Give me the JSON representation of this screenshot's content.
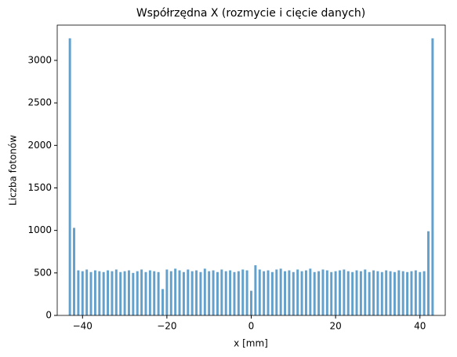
{
  "chart_data": {
    "type": "histogram",
    "title": "Współrzędna X (rozmycie i cięcie danych)",
    "x_label": "x [mm]",
    "y_label": "Liczba fotonów",
    "color": "#63a1cc",
    "bins": [
      -43.5,
      -42.5,
      -41.5,
      -40.5,
      -39.5,
      -38.5,
      -37.5,
      -36.5,
      -35.5,
      -34.5,
      -33.5,
      -32.5,
      -31.5,
      -30.5,
      -29.5,
      -28.5,
      -27.5,
      -26.5,
      -25.5,
      -24.5,
      -23.5,
      -22.5,
      -21.5,
      -20.5,
      -19.5,
      -18.5,
      -17.5,
      -16.5,
      -15.5,
      -14.5,
      -13.5,
      -12.5,
      -11.5,
      -10.5,
      -9.5,
      -8.5,
      -7.5,
      -6.5,
      -5.5,
      -4.5,
      -3.5,
      -2.5,
      -1.5,
      -0.5,
      0.5,
      1.5,
      2.5,
      3.5,
      4.5,
      5.5,
      6.5,
      7.5,
      8.5,
      9.5,
      10.5,
      11.5,
      12.5,
      13.5,
      14.5,
      15.5,
      16.5,
      17.5,
      18.5,
      19.5,
      20.5,
      21.5,
      22.5,
      23.5,
      24.5,
      25.5,
      26.5,
      27.5,
      28.5,
      29.5,
      30.5,
      31.5,
      32.5,
      33.5,
      34.5,
      35.5,
      36.5,
      37.5,
      38.5,
      39.5,
      40.5,
      41.5,
      42.5,
      43.5
    ],
    "counts": [
      3260,
      1030,
      530,
      520,
      540,
      510,
      530,
      520,
      510,
      530,
      520,
      540,
      510,
      520,
      530,
      500,
      520,
      540,
      510,
      530,
      520,
      510,
      310,
      540,
      520,
      550,
      530,
      510,
      540,
      520,
      530,
      510,
      550,
      520,
      530,
      510,
      540,
      520,
      530,
      510,
      520,
      540,
      530,
      290,
      590,
      540,
      520,
      530,
      510,
      540,
      550,
      520,
      530,
      510,
      540,
      520,
      530,
      550,
      510,
      520,
      540,
      530,
      510,
      520,
      530,
      540,
      520,
      510,
      530,
      520,
      540,
      510,
      530,
      520,
      510,
      530,
      520,
      510,
      530,
      520,
      510,
      520,
      530,
      510,
      520,
      990,
      3260
    ],
    "xlim": [
      -46,
      46
    ],
    "ylim": [
      0,
      3415
    ],
    "xticks": [
      {
        "value": -40,
        "label": "−40"
      },
      {
        "value": -20,
        "label": "−20"
      },
      0,
      20,
      40
    ],
    "yticks": [
      0,
      500,
      1000,
      1500,
      2000,
      2500,
      3000
    ]
  }
}
